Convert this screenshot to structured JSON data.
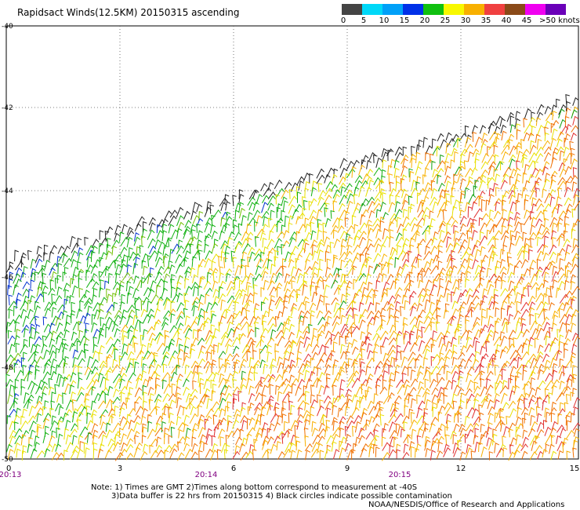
{
  "title": "Rapidsact Winds(12.5KM) 20150315 ascending",
  "colorbar": {
    "colors": [
      "#444444",
      "#888888",
      "#00d8f8",
      "#00a0f8",
      "#0040f0",
      "#10b010",
      "#10d010",
      "#f8f800",
      "#f8c000",
      "#f88000",
      "#f03030",
      "#c00000",
      "#8a4a18",
      "#d0a0a0",
      "#f000f0",
      "#c000d0",
      "#8000c0",
      "#400080"
    ],
    "labels": [
      "0",
      "5",
      "10",
      "15",
      "20",
      "25",
      "30",
      "35",
      "40",
      "45",
      ">50 knots"
    ]
  },
  "axes": {
    "y_labels": [
      "-40",
      "-42",
      "-44",
      "-46",
      "-48",
      "-50"
    ],
    "x_labels": [
      "0",
      "3",
      "6",
      "9",
      "12",
      "15"
    ],
    "time_labels": [
      "20:13",
      "20:14",
      "20:15"
    ]
  },
  "notes": [
    "Note: 1) Times are GMT 2)Times along bottom correspond to measurement at -40S",
    "3)Data buffer is 22 hrs from 20150315 4) Black circles indicate possible contamination"
  ],
  "credit": "NOAA/NESDIS/Office of Research and Applications"
}
